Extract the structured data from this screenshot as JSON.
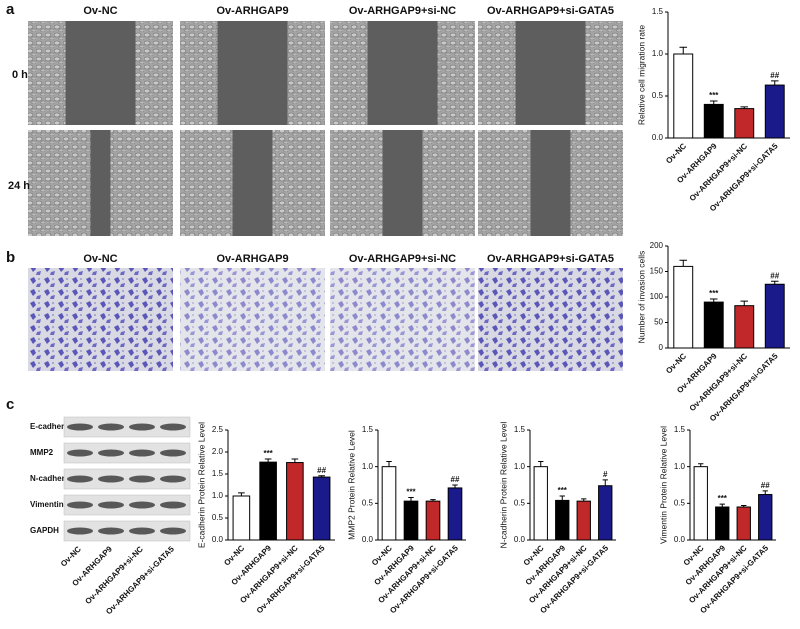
{
  "panel_labels": [
    "a",
    "b",
    "c"
  ],
  "migration_images": {
    "columns": [
      "Ov-NC",
      "Ov-ARHGAP9",
      "Ov-ARHGAP9+si-NC",
      "Ov-ARHGAP9+si-GATA5"
    ],
    "rows": [
      "0 h",
      "24 h"
    ]
  },
  "invasion_images": {
    "columns": [
      "Ov-NC",
      "Ov-ARHGAP9",
      "Ov-ARHGAP9+si-NC",
      "Ov-ARHGAP9+si-GATA5"
    ]
  },
  "western_blot": {
    "proteins": [
      "E-cadherin",
      "MMP2",
      "N-cadherin",
      "Vimentin",
      "GAPDH"
    ],
    "lanes": [
      "Ov-NC",
      "Ov-ARHGAP9",
      "Ov-ARHGAP9+si-NC",
      "Ov-ARHGAP9+si-GATA5"
    ]
  },
  "chart_data": [
    {
      "type": "bar",
      "ylabel": "Relative cell migration rate",
      "categories": [
        "Ov-NC",
        "Ov-ARHGAP9",
        "Ov-ARHGAP9+si-NC",
        "Ov-ARHGAP9+si-GATA5"
      ],
      "values": [
        1.0,
        0.4,
        0.35,
        0.63
      ],
      "errors": [
        0.08,
        0.04,
        0.02,
        0.05
      ],
      "annotations": [
        null,
        "***",
        null,
        "##"
      ],
      "colors": [
        "#ffffff",
        "#000000",
        "#c0282a",
        "#1a1a8a"
      ],
      "ylim": [
        0,
        1.5
      ],
      "yticks": [
        {
          "value": 0,
          "label": "0.0"
        },
        0.5,
        {
          "value": 1,
          "label": "1.0"
        },
        1.5
      ]
    },
    {
      "type": "bar",
      "ylabel": "Number of invasion cells",
      "categories": [
        "Ov-NC",
        "Ov-ARHGAP9",
        "Ov-ARHGAP9+si-NC",
        "Ov-ARHGAP9+si-GATA5"
      ],
      "values": [
        160,
        90,
        83,
        125
      ],
      "errors": [
        12,
        6,
        9,
        6
      ],
      "annotations": [
        null,
        "***",
        null,
        "##"
      ],
      "colors": [
        "#ffffff",
        "#000000",
        "#c0282a",
        "#1a1a8a"
      ],
      "ylim": [
        0,
        200
      ],
      "yticks": [
        0,
        50,
        100,
        150,
        200
      ]
    },
    {
      "type": "bar",
      "ylabel": "E-cadherin Protein Relative Level",
      "categories": [
        "Ov-NC",
        "Ov-ARHGAP9",
        "Ov-ARHGAP9+si-NC",
        "Ov-ARHGAP9+si-GATA5"
      ],
      "values": [
        1.0,
        1.77,
        1.76,
        1.43
      ],
      "errors": [
        0.07,
        0.07,
        0.08,
        0.03
      ],
      "annotations": [
        null,
        "***",
        null,
        "##"
      ],
      "colors": [
        "#ffffff",
        "#000000",
        "#c0282a",
        "#1a1a8a"
      ],
      "ylim": [
        0,
        2.5
      ],
      "yticks": [
        {
          "value": 0,
          "label": "0.0"
        },
        0.5,
        {
          "value": 1,
          "label": "1.0"
        },
        1.5,
        {
          "value": 2,
          "label": "2.0"
        },
        2.5
      ]
    },
    {
      "type": "bar",
      "ylabel": "MMP2 Protein Relative Level",
      "categories": [
        "Ov-NC",
        "Ov-ARHGAP9",
        "Ov-ARHGAP9+si-NC",
        "Ov-ARHGAP9+si-GATA5"
      ],
      "values": [
        1.0,
        0.53,
        0.53,
        0.71
      ],
      "errors": [
        0.07,
        0.05,
        0.02,
        0.04
      ],
      "annotations": [
        null,
        "***",
        null,
        "##"
      ],
      "colors": [
        "#ffffff",
        "#000000",
        "#c0282a",
        "#1a1a8a"
      ],
      "ylim": [
        0,
        1.5
      ],
      "yticks": [
        {
          "value": 0,
          "label": "0.0"
        },
        0.5,
        {
          "value": 1,
          "label": "1.0"
        },
        1.5
      ]
    },
    {
      "type": "bar",
      "ylabel": "N-cadherin Protein Relative Level",
      "categories": [
        "Ov-NC",
        "Ov-ARHGAP9",
        "Ov-ARHGAP9+si-NC",
        "Ov-ARHGAP9+si-GATA5"
      ],
      "values": [
        1.0,
        0.54,
        0.53,
        0.74
      ],
      "errors": [
        0.07,
        0.06,
        0.03,
        0.08
      ],
      "annotations": [
        null,
        "***",
        null,
        "#"
      ],
      "colors": [
        "#ffffff",
        "#000000",
        "#c0282a",
        "#1a1a8a"
      ],
      "ylim": [
        0,
        1.5
      ],
      "yticks": [
        {
          "value": 0,
          "label": "0.0"
        },
        0.5,
        {
          "value": 1,
          "label": "1.0"
        },
        1.5
      ]
    },
    {
      "type": "bar",
      "ylabel": "Vimentin Protein Relative Level",
      "categories": [
        "Ov-NC",
        "Ov-ARHGAP9",
        "Ov-ARHGAP9+si-NC",
        "Ov-ARHGAP9+si-GATA5"
      ],
      "values": [
        1.0,
        0.45,
        0.45,
        0.62
      ],
      "errors": [
        0.04,
        0.04,
        0.02,
        0.05
      ],
      "annotations": [
        null,
        "***",
        null,
        "##"
      ],
      "colors": [
        "#ffffff",
        "#000000",
        "#c0282a",
        "#1a1a8a"
      ],
      "ylim": [
        0,
        1.5
      ],
      "yticks": [
        {
          "value": 0,
          "label": "0.0"
        },
        0.5,
        {
          "value": 1,
          "label": "1.0"
        },
        1.5
      ]
    }
  ]
}
